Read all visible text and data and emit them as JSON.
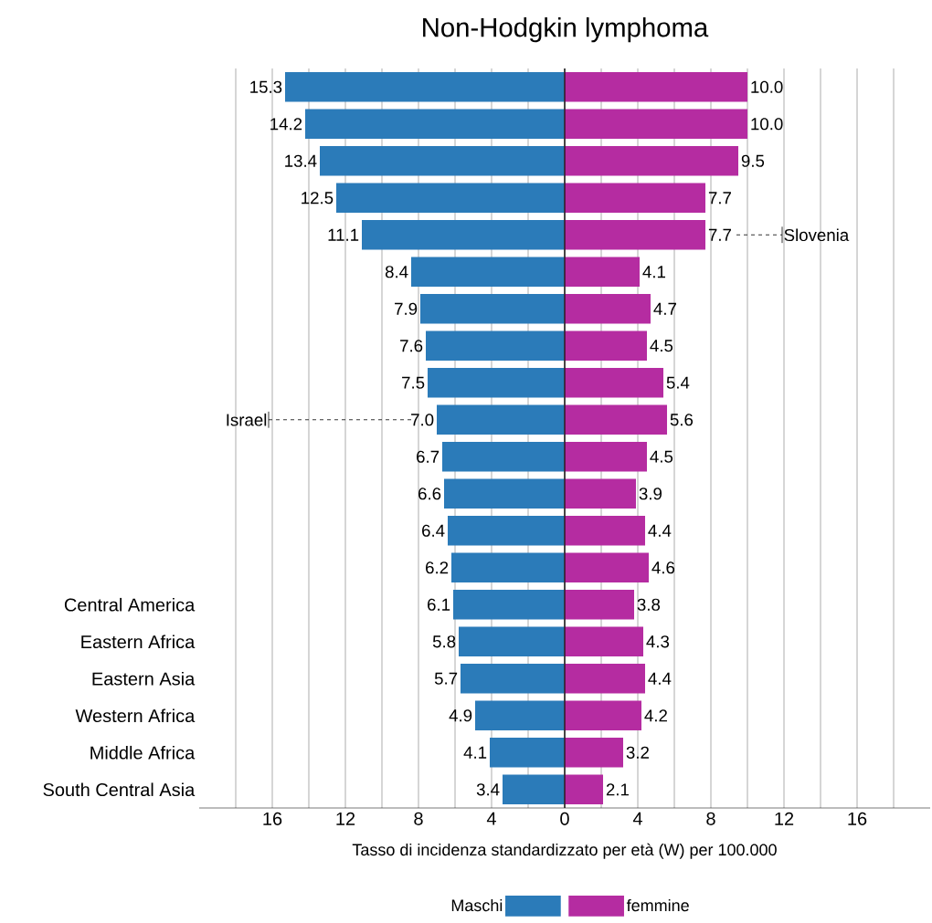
{
  "chart_data": [
    {
      "type": "bar",
      "orientation": "horizontal",
      "title": "Non-Hodgkin lymphoma",
      "xlabel": "Tasso di incidenza standardizzato per età (W) per 100.000",
      "categories": [
        null,
        null,
        null,
        null,
        null,
        null,
        null,
        null,
        null,
        null,
        null,
        null,
        null,
        null,
        "Central America",
        "Eastern Africa",
        "Eastern Asia",
        "Western Africa",
        "Middle Africa",
        "South Central Asia"
      ],
      "series": [
        {
          "name": "Maschi",
          "color": "#2b7bb9",
          "values": [
            15.3,
            14.2,
            13.4,
            12.5,
            11.1,
            8.4,
            7.9,
            7.6,
            7.5,
            7.0,
            6.7,
            6.6,
            6.4,
            6.2,
            6.1,
            5.8,
            5.7,
            4.9,
            4.1,
            3.4
          ],
          "value_labels": [
            "15.3",
            "14.2",
            "13.4",
            "12.5",
            "11.1",
            "8.4",
            "7.9",
            "7.6",
            "7.5",
            "7.0",
            "6.7",
            "6.6",
            "6.4",
            "6.2",
            "6.1",
            "5.8",
            "5.7",
            "4.9",
            "4.1",
            "3.4"
          ]
        }
      ],
      "xlim": [
        20,
        0
      ],
      "xticks": [
        {
          "value": 18,
          "label": null
        },
        16,
        {
          "value": 14,
          "label": null
        },
        12,
        {
          "value": 10,
          "label": null
        },
        8,
        {
          "value": 6,
          "label": null
        },
        4,
        {
          "value": 2,
          "label": null
        }
      ],
      "annotations": [
        "Israel"
      ],
      "grid": "x",
      "legend": "bottom"
    },
    {
      "type": "bar",
      "orientation": "horizontal",
      "categories": [
        null,
        null,
        null,
        null,
        null,
        null,
        null,
        null,
        null,
        null,
        null,
        null,
        null,
        null,
        null,
        null,
        null,
        null,
        null,
        null
      ],
      "series": [
        {
          "name": "femmine",
          "color": "#b52ca1",
          "values": [
            10.0,
            10.0,
            9.5,
            7.7,
            7.7,
            4.1,
            4.7,
            4.5,
            5.4,
            5.6,
            4.5,
            3.9,
            4.4,
            4.6,
            3.8,
            4.3,
            4.4,
            4.2,
            3.2,
            2.1
          ],
          "value_labels": [
            "10.0",
            "10.0",
            "9.5",
            "7.7",
            "7.7",
            "4.1",
            "4.7",
            "4.5",
            "5.4",
            "5.6",
            "4.5",
            "3.9",
            "4.4",
            "4.6",
            "3.8",
            "4.3",
            "4.4",
            "4.2",
            "3.2",
            "2.1"
          ]
        }
      ],
      "xlim": [
        0,
        20
      ],
      "xticks": [
        0,
        {
          "value": 2,
          "label": null
        },
        4,
        {
          "value": 6,
          "label": null
        },
        8,
        {
          "value": 10,
          "label": null
        },
        12,
        {
          "value": 14,
          "label": null
        },
        16,
        {
          "value": 18,
          "label": null
        }
      ],
      "annotations": [
        "Slovenia"
      ],
      "tick_labels": "x",
      "grid": "x",
      "legend": "bottom"
    }
  ]
}
